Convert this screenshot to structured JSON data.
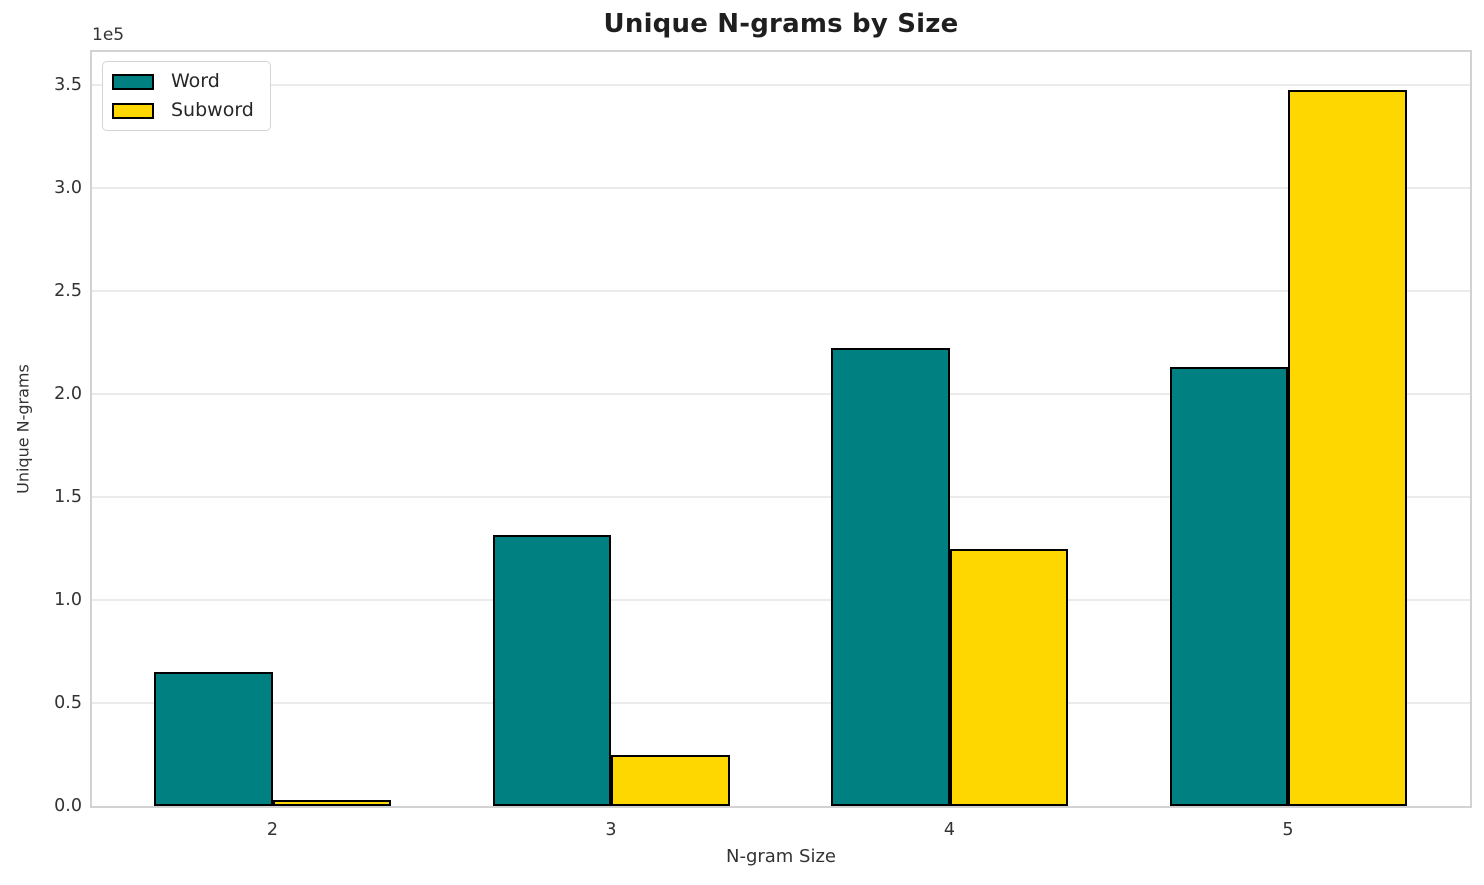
{
  "chart_data": {
    "type": "bar",
    "title": "Unique N-grams by Size",
    "xlabel": "N-gram Size",
    "ylabel": "Unique N-grams",
    "offset_text": "1e5",
    "categories": [
      "2",
      "3",
      "4",
      "5"
    ],
    "series": [
      {
        "name": "Word",
        "color": "#008080",
        "values": [
          65000,
          131500,
          222500,
          213000
        ]
      },
      {
        "name": "Subword",
        "color": "#FFD700",
        "values": [
          3000,
          24800,
          125000,
          347500
        ]
      }
    ],
    "bar_edge_color": "#000000",
    "ylim": [
      0,
      366000
    ],
    "yticks": [
      0,
      50000,
      100000,
      150000,
      200000,
      250000,
      300000,
      350000
    ],
    "ytick_labels": [
      "0.0",
      "0.5",
      "1.0",
      "1.5",
      "2.0",
      "2.5",
      "3.0",
      "3.5"
    ],
    "grid": true,
    "grid_color": "#ebebeb",
    "legend_position": "upper left"
  }
}
